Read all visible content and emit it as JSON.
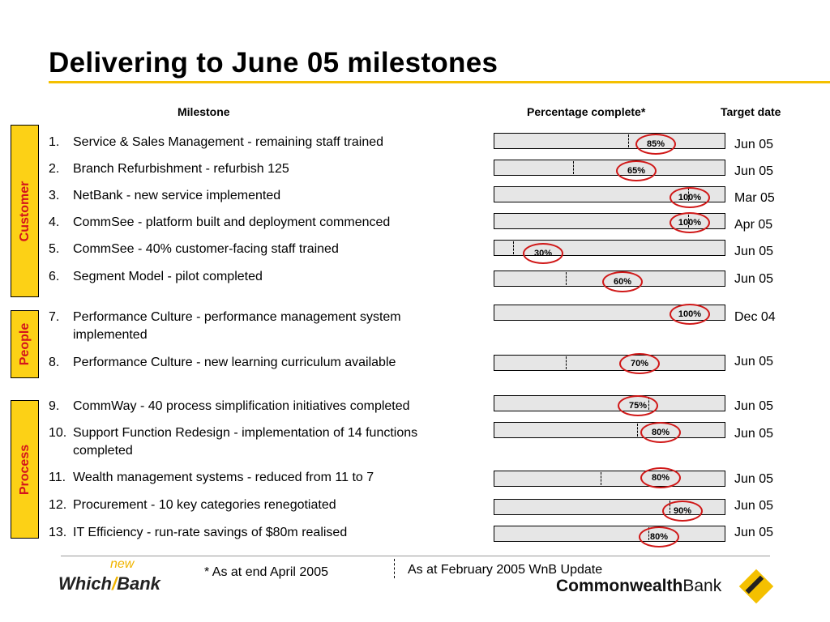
{
  "title": "Delivering to June 05 milestones",
  "headers": {
    "milestone": "Milestone",
    "percent": "Percentage complete*",
    "target": "Target date"
  },
  "groups": [
    "Customer",
    "People",
    "Process"
  ],
  "milestones": [
    {
      "num": "1.",
      "text": "Service & Sales Management - remaining staff trained",
      "pct": 85,
      "pct_label": "85%",
      "marker": 58,
      "date": "Jun 05"
    },
    {
      "num": "2.",
      "text": "Branch Refurbishment - refurbish 125",
      "pct": 65,
      "pct_label": "65%",
      "marker": 34,
      "date": "Jun 05"
    },
    {
      "num": "3.",
      "text": "NetBank - new service implemented",
      "pct": 100,
      "pct_label": "100%",
      "marker": 84,
      "date": "Mar 05"
    },
    {
      "num": "4.",
      "text": "CommSee - platform built and deployment commenced",
      "pct": 100,
      "pct_label": "100%",
      "marker": 84,
      "date": "Apr 05"
    },
    {
      "num": "5.",
      "text": "CommSee - 40% customer-facing staff trained",
      "pct": 30,
      "pct_label": "30%",
      "marker": 8,
      "date": "Jun 05"
    },
    {
      "num": "6.",
      "text": "Segment Model - pilot completed",
      "pct": 60,
      "pct_label": "60%",
      "marker": 31,
      "date": "Jun 05"
    },
    {
      "num": "7.",
      "text": "Performance Culture - performance management system implemented",
      "pct": 100,
      "pct_label": "100%",
      "marker": null,
      "date": "Dec 04"
    },
    {
      "num": "8.",
      "text": "Performance Culture - new learning curriculum available",
      "pct": 70,
      "pct_label": "70%",
      "marker": 31,
      "date": "Jun 05"
    },
    {
      "num": "9.",
      "text": "CommWay - 40 process simplification initiatives completed",
      "pct": 75,
      "pct_label": "75%",
      "marker": 67,
      "date": "Jun 05"
    },
    {
      "num": "10.",
      "text": "Support Function Redesign - implementation of 14 functions completed",
      "pct": 80,
      "pct_label": "80%",
      "marker": 62,
      "date": "Jun 05"
    },
    {
      "num": "11.",
      "text": "Wealth management systems - reduced from 11 to 7",
      "pct": 80,
      "pct_label": "80%",
      "marker": 46,
      "date": "Jun 05"
    },
    {
      "num": "12.",
      "text": "Procurement - 10 key categories renegotiated",
      "pct": 90,
      "pct_label": "90%",
      "marker": 76,
      "date": "Jun 05"
    },
    {
      "num": "13.",
      "text": "IT Efficiency - run-rate savings of $80m realised",
      "pct": 80,
      "pct_label": "80%",
      "marker": 67,
      "date": "Jun 05"
    }
  ],
  "footnote": "* As at end April 2005",
  "update_note": "As at February 2005 WnB Update",
  "logos": {
    "which": "Which",
    "new": "new",
    "bank": "Bank",
    "cba_bold": "Commonwealth",
    "cba_light": "Bank"
  },
  "colors": {
    "accent": "#f4c000",
    "group_fill": "#fcd116",
    "group_text": "#d4141c",
    "circle": "#d01818",
    "bar_fill": "#e6e6e6"
  }
}
